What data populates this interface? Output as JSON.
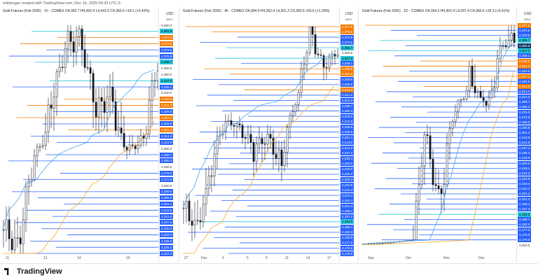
{
  "header": {
    "attribution": "erikbregar created with TradingView.com, Dec 16, 2025 09:33 UTC-5"
  },
  "panels": [
    {
      "title": "Gold Futures (Feb 2026) · 1h · COMEX",
      "ohlc": "O4,342.7 H4,362.4 L4,341.0 C4,360.6 +18.1 (+0.42%)",
      "currency": "USD",
      "cur_sub": "apoc",
      "price_labels": [
        {
          "t": "4,390.0",
          "s": "plain"
        },
        {
          "t": "4,381.8",
          "s": "teal"
        },
        {
          "t": "4,379.6",
          "s": "orange"
        },
        {
          "t": "4,375.8",
          "s": "orange"
        },
        {
          "t": "4,372.5",
          "s": "blue"
        },
        {
          "t": "4,370.5",
          "s": "blue"
        },
        {
          "t": "4,366.7",
          "s": "teal"
        },
        {
          "t": "4,360.6",
          "s": "plain"
        },
        {
          "t": "4,350.0",
          "s": "plain"
        },
        {
          "t": "4,347.0",
          "s": "teal"
        },
        {
          "t": "4,345.1",
          "s": "blue"
        },
        {
          "t": "4,340.0",
          "s": "plain"
        },
        {
          "t": "4,336.5",
          "s": "orange"
        },
        {
          "t": "4,331.2",
          "s": "orange"
        },
        {
          "t": "4,329.9",
          "s": "blue"
        },
        {
          "t": "4,327.1",
          "s": "orange"
        },
        {
          "t": "4,326.6",
          "s": "blue"
        },
        {
          "t": "4,324.3",
          "s": "orange"
        },
        {
          "t": "4,314.2",
          "s": "blue"
        },
        {
          "t": "4,312.0",
          "s": "blue"
        },
        {
          "t": "4,300.0",
          "s": "plain"
        },
        {
          "t": "4,289.7",
          "s": "blue"
        },
        {
          "t": "4,285.3",
          "s": "blue"
        },
        {
          "t": "4,280.0",
          "s": "plain"
        },
        {
          "t": "4,276.0",
          "s": "blue"
        },
        {
          "t": "4,272.6",
          "s": "blue"
        },
        {
          "t": "4,260.0",
          "s": "plain"
        },
        {
          "t": "4,258.6",
          "s": "blue"
        },
        {
          "t": "4,255.9",
          "s": "blue"
        },
        {
          "t": "4,251.1",
          "s": "blue"
        },
        {
          "t": "4,243.9",
          "s": "blue"
        },
        {
          "t": "4,241.0",
          "s": "blue"
        },
        {
          "t": "4,237.4",
          "s": "blue"
        },
        {
          "t": "4,235.4",
          "s": "blue"
        },
        {
          "t": "4,233.0",
          "s": "blue"
        },
        {
          "t": "4,228.0",
          "s": "blue"
        },
        {
          "t": "4,225.2",
          "s": "blue"
        },
        {
          "t": "4,222.3",
          "s": "blue"
        }
      ],
      "x_ticks": [
        "11",
        "12",
        "14",
        "16"
      ]
    },
    {
      "title": "Gold Futures (Feb 2026) · 4h · COMEX",
      "ohlc": "O4,304.9 H4,362.4 L4,301.2 C4,360.6 +55.5 (+1.29%)",
      "currency": "USD",
      "cur_sub": "apoc",
      "price_labels": [
        {
          "t": "4,377.5",
          "s": "orange"
        },
        {
          "t": "4,375.5",
          "s": "orange"
        },
        {
          "t": "4,372.5",
          "s": "blue"
        },
        {
          "t": "4,370.5",
          "s": "blue"
        },
        {
          "t": "4,366.7",
          "s": "teal"
        },
        {
          "t": "4,360.6",
          "s": "plain"
        },
        {
          "t": "4,347.0",
          "s": "teal"
        },
        {
          "t": "4,345.1",
          "s": "blue"
        },
        {
          "t": "4,336.5",
          "s": "orange"
        },
        {
          "t": "4,331.2",
          "s": "orange"
        },
        {
          "t": "4,329.9",
          "s": "blue"
        },
        {
          "t": "4,326.6",
          "s": "blue"
        },
        {
          "t": "4,324.3",
          "s": "orange"
        },
        {
          "t": "4,314.2",
          "s": "blue"
        },
        {
          "t": "4,312.0",
          "s": "blue"
        },
        {
          "t": "4,289.7",
          "s": "blue"
        },
        {
          "t": "4,285.3",
          "s": "blue"
        },
        {
          "t": "4,276.0",
          "s": "blue"
        },
        {
          "t": "4,272.6",
          "s": "blue"
        },
        {
          "t": "4,258.6",
          "s": "blue"
        },
        {
          "t": "4,255.9",
          "s": "blue"
        },
        {
          "t": "4,251.1",
          "s": "blue"
        },
        {
          "t": "4,243.9",
          "s": "blue"
        },
        {
          "t": "4,241.0",
          "s": "blue"
        },
        {
          "t": "4,237.4",
          "s": "blue"
        },
        {
          "t": "4,235.4",
          "s": "blue"
        },
        {
          "t": "4,233.0",
          "s": "blue"
        },
        {
          "t": "4,228.0",
          "s": "blue"
        },
        {
          "t": "4,225.2",
          "s": "blue"
        },
        {
          "t": "4,222.3",
          "s": "blue"
        },
        {
          "t": "4,220.9",
          "s": "blue"
        },
        {
          "t": "4,218.4",
          "s": "blue"
        },
        {
          "t": "4,210.1",
          "s": "blue"
        },
        {
          "t": "4,204.1",
          "s": "blue"
        },
        {
          "t": "4,201.4",
          "s": "blue"
        },
        {
          "t": "4,198.1",
          "s": "blue"
        },
        {
          "t": "4,197.4",
          "s": "blue"
        },
        {
          "t": "4,194.0",
          "s": "teal"
        },
        {
          "t": "4,185.7",
          "s": "blue"
        },
        {
          "t": "4,182.3",
          "s": "blue"
        },
        {
          "t": "4,180.9",
          "s": "blue"
        },
        {
          "t": "4,177.3",
          "s": "blue"
        },
        {
          "t": "4,176.6",
          "s": "blue"
        },
        {
          "t": "4,176.0",
          "s": "blue"
        }
      ],
      "x_ticks": [
        "27",
        "Dec",
        "3",
        "5",
        "9",
        "11",
        "14",
        "17"
      ]
    },
    {
      "title": "Gold Futures (Feb 2026) · 1D · COMEX",
      "ohlc": "O4,334.3 H4,362.4 L4,297.4 C4,360.6 +26.3 (+0.61%)",
      "currency": "USD",
      "cur_sub": "apoc",
      "price_labels": [
        {
          "t": "4,377.5",
          "s": "orange"
        },
        {
          "t": "4,372.5",
          "s": "blue"
        },
        {
          "t": "4,370.5",
          "s": "blue"
        },
        {
          "t": "4,366.7",
          "s": "teal"
        },
        {
          "t": "4,360.6",
          "s": "dark"
        },
        {
          "t": "4,347.0",
          "s": "teal"
        },
        {
          "t": "4,345.1",
          "s": "blue"
        },
        {
          "t": "4,336.5",
          "s": "orange"
        },
        {
          "t": "4,331.2",
          "s": "orange"
        },
        {
          "t": "4,329.9",
          "s": "blue"
        },
        {
          "t": "4,327.1",
          "s": "orange"
        },
        {
          "t": "4,326.6",
          "s": "blue"
        },
        {
          "t": "4,324.3",
          "s": "orange"
        },
        {
          "t": "4,314.2",
          "s": "blue"
        },
        {
          "t": "4,312.0",
          "s": "blue"
        },
        {
          "t": "4,289.7",
          "s": "blue"
        },
        {
          "t": "4,285.3",
          "s": "blue"
        },
        {
          "t": "4,276.0",
          "s": "blue"
        },
        {
          "t": "4,272.6",
          "s": "blue"
        },
        {
          "t": "4,258.6",
          "s": "blue"
        },
        {
          "t": "4,255.9",
          "s": "blue"
        },
        {
          "t": "4,251.1",
          "s": "blue"
        },
        {
          "t": "4,243.9",
          "s": "blue"
        },
        {
          "t": "4,241.0",
          "s": "blue"
        },
        {
          "t": "4,237.4",
          "s": "blue"
        },
        {
          "t": "4,235.4",
          "s": "blue"
        },
        {
          "t": "4,233.0",
          "s": "blue"
        },
        {
          "t": "4,228.0",
          "s": "blue"
        },
        {
          "t": "4,225.2",
          "s": "blue"
        },
        {
          "t": "4,222.3",
          "s": "blue"
        },
        {
          "t": "4,220.9",
          "s": "blue"
        },
        {
          "t": "4,218.4",
          "s": "blue"
        },
        {
          "t": "4,210.1",
          "s": "blue"
        },
        {
          "t": "4,204.1",
          "s": "blue"
        },
        {
          "t": "4,201.4",
          "s": "blue"
        },
        {
          "t": "4,198.1",
          "s": "blue"
        },
        {
          "t": "4,197.4",
          "s": "blue"
        },
        {
          "t": "4,194.0",
          "s": "teal"
        },
        {
          "t": "4,185.7",
          "s": "blue"
        },
        {
          "t": "4,182.3",
          "s": "blue"
        },
        {
          "t": "4,177.3",
          "s": "blue"
        },
        {
          "t": "4,176.6",
          "s": "blue"
        },
        {
          "t": "4,176.0",
          "s": "blue"
        },
        {
          "t": "3,900.0",
          "s": "plain"
        }
      ],
      "x_ticks": [
        "Sep",
        "Oct",
        "Nov",
        "Dec"
      ]
    }
  ],
  "footer": {
    "logo": "TradingView"
  },
  "colors": {
    "up": "#131722",
    "down": "#131722",
    "level": "#2962ff",
    "ma_fast": "#42a5f5",
    "ma_slow": "#f9a825",
    "teal": "#26c6da"
  }
}
